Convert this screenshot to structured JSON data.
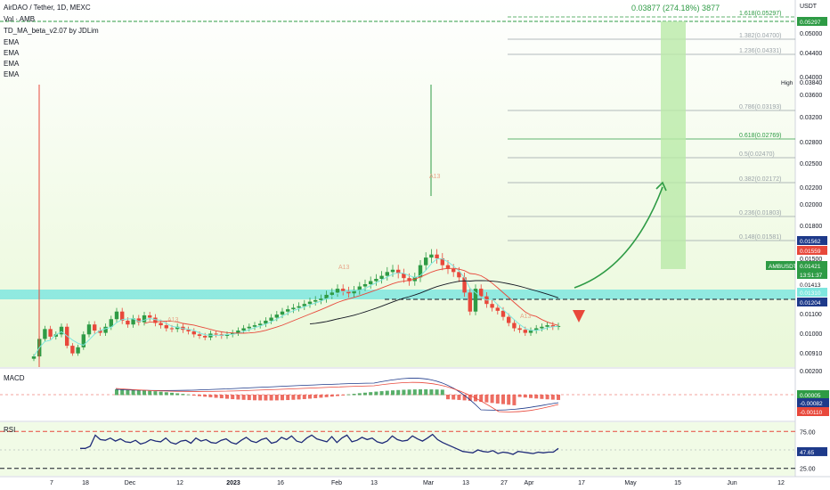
{
  "header": {
    "symbol_line": "AirDAO / Tether, 1D, MEXC",
    "volume_label": "Vol · AMB",
    "indicator": "TD_MA_beta_v2.07 by JDLim",
    "ema_labels": [
      "EMA",
      "EMA",
      "EMA",
      "EMA"
    ]
  },
  "measure_label": "0.03877 (274.18%) 3877",
  "axis_unit": "USDT",
  "price_axis_ticks": [
    "0.05000",
    "0.04400",
    "0.04000",
    "0.03840",
    "0.03600",
    "0.03200",
    "0.02800",
    "0.02500",
    "0.02200",
    "0.02000",
    "0.01800",
    "0.01500",
    "0.01100",
    "0.01000",
    "0.00910"
  ],
  "high_label": "High",
  "price_tags": [
    {
      "text": "0.05297",
      "bg": "#2e9b45",
      "fg": "#ffffff"
    },
    {
      "text": "0.01562",
      "bg": "#1e3a8a",
      "fg": "#ffffff"
    },
    {
      "text": "0.01559",
      "bg": "#e8483b",
      "fg": "#ffffff"
    },
    {
      "text": "AMBUSDT",
      "bg": "#2e9b45",
      "fg": "#ffffff"
    },
    {
      "text": "0.01421",
      "bg": "#2e9b45",
      "fg": "#ffffff"
    },
    {
      "text": "13:51:37",
      "bg": "#2e9b45",
      "fg": "#ffffff"
    },
    {
      "text": "0.01413",
      "bg": "#ffffff",
      "fg": "#131722"
    },
    {
      "text": "0.01310",
      "bg": "#7fe6df",
      "fg": "#ffffff"
    },
    {
      "text": "0.01204",
      "bg": "#1e3a8a",
      "fg": "#ffffff"
    }
  ],
  "fib_levels": [
    {
      "label": "1.618(0.05297)",
      "color": "#2e9b45"
    },
    {
      "label": "1.382(0.04700)",
      "color": "#9aa3a8"
    },
    {
      "label": "1.236(0.04331)",
      "color": "#9aa3a8"
    },
    {
      "label": "0.786(0.03193)",
      "color": "#9aa3a8"
    },
    {
      "label": "0.618(0.02769)",
      "color": "#2e9b45"
    },
    {
      "label": "0.5(0.02470)",
      "color": "#9aa3a8"
    },
    {
      "label": "0.382(0.02172)",
      "color": "#9aa3a8"
    },
    {
      "label": "0.236(0.01803)",
      "color": "#9aa3a8"
    },
    {
      "label": "0.148(0.01581)",
      "color": "#9aa3a8"
    }
  ],
  "annotations": [
    "A13",
    "A13",
    "A13",
    "A13"
  ],
  "macd": {
    "label": "MACD",
    "ticks": [
      "0.00200"
    ],
    "tags": [
      {
        "text": "0.00005",
        "bg": "#2e9b45",
        "fg": "#ffffff"
      },
      {
        "text": "-0.00082",
        "bg": "#1e3a8a",
        "fg": "#ffffff"
      },
      {
        "text": "-0.00110",
        "bg": "#e8483b",
        "fg": "#ffffff"
      }
    ]
  },
  "rsi": {
    "label": "RSI",
    "ticks": [
      "75.00",
      "25.00"
    ],
    "tags": [
      {
        "text": "47.65",
        "bg": "#1e3a8a",
        "fg": "#ffffff"
      }
    ],
    "values": [
      52,
      52,
      55,
      70,
      64,
      63,
      66,
      62,
      65,
      61,
      60,
      63,
      58,
      60,
      64,
      62,
      61,
      66,
      60,
      58,
      62,
      63,
      59,
      66,
      62,
      64,
      60,
      59,
      63,
      65,
      60,
      58,
      63,
      67,
      62,
      60,
      64,
      66,
      59,
      61,
      67,
      64,
      69,
      62,
      60,
      66,
      70,
      65,
      63,
      61,
      68,
      60,
      66,
      70,
      61,
      63,
      67,
      64,
      66,
      61,
      59,
      62,
      69,
      64,
      62,
      63,
      69,
      65,
      62,
      66,
      71,
      64,
      60,
      57,
      54,
      51,
      48,
      47,
      46,
      50,
      48,
      47,
      49,
      45,
      47,
      46,
      44,
      48,
      47,
      46,
      45,
      47,
      46,
      47,
      47,
      52
    ]
  },
  "time_axis_ticks": [
    "7",
    "18",
    "Dec",
    "12",
    "2023",
    "16",
    "Feb",
    "13",
    "Mar",
    "13",
    "27",
    "Apr",
    "17",
    "May",
    "15",
    "Jun",
    "12"
  ],
  "chart_data": {
    "type": "candlestick",
    "title": "AirDAO / Tether, 1D, MEXC",
    "x_range": [
      "Nov 2022",
      "Apr 2023"
    ],
    "ylim": [
      0.0088,
      0.0545
    ],
    "colors": {
      "up": "#2e9b45",
      "down": "#e8483b",
      "support": "#7fe6df",
      "bg": "#f0fbe4"
    },
    "close": [
      0.0102,
      0.0125,
      0.0138,
      0.0128,
      0.0131,
      0.0141,
      0.0116,
      0.0106,
      0.0114,
      0.0131,
      0.0144,
      0.0136,
      0.0133,
      0.0141,
      0.0151,
      0.0161,
      0.0149,
      0.0144,
      0.0152,
      0.0147,
      0.0156,
      0.0153,
      0.0146,
      0.0143,
      0.0139,
      0.0138,
      0.0141,
      0.0137,
      0.0135,
      0.0131,
      0.0129,
      0.0127,
      0.0132,
      0.0131,
      0.0129,
      0.0131,
      0.0133,
      0.0136,
      0.0139,
      0.0141,
      0.0143,
      0.0145,
      0.0149,
      0.0153,
      0.0157,
      0.0161,
      0.0164,
      0.0166,
      0.0168,
      0.0171,
      0.0174,
      0.0176,
      0.0178,
      0.0183,
      0.0186,
      0.0191,
      0.0188,
      0.0185,
      0.0189,
      0.0194,
      0.0197,
      0.0201,
      0.0204,
      0.0208,
      0.0213,
      0.0216,
      0.0211,
      0.0205,
      0.0201,
      0.0206,
      0.0222,
      0.0232,
      0.0236,
      0.0231,
      0.0222,
      0.0217,
      0.0213,
      0.0206,
      0.0186,
      0.0161,
      0.0191,
      0.0181,
      0.0171,
      0.0166,
      0.0162,
      0.0154,
      0.0146,
      0.0139,
      0.0137,
      0.0133,
      0.0136,
      0.0139,
      0.0141,
      0.0143,
      0.0141,
      0.0142
    ]
  }
}
